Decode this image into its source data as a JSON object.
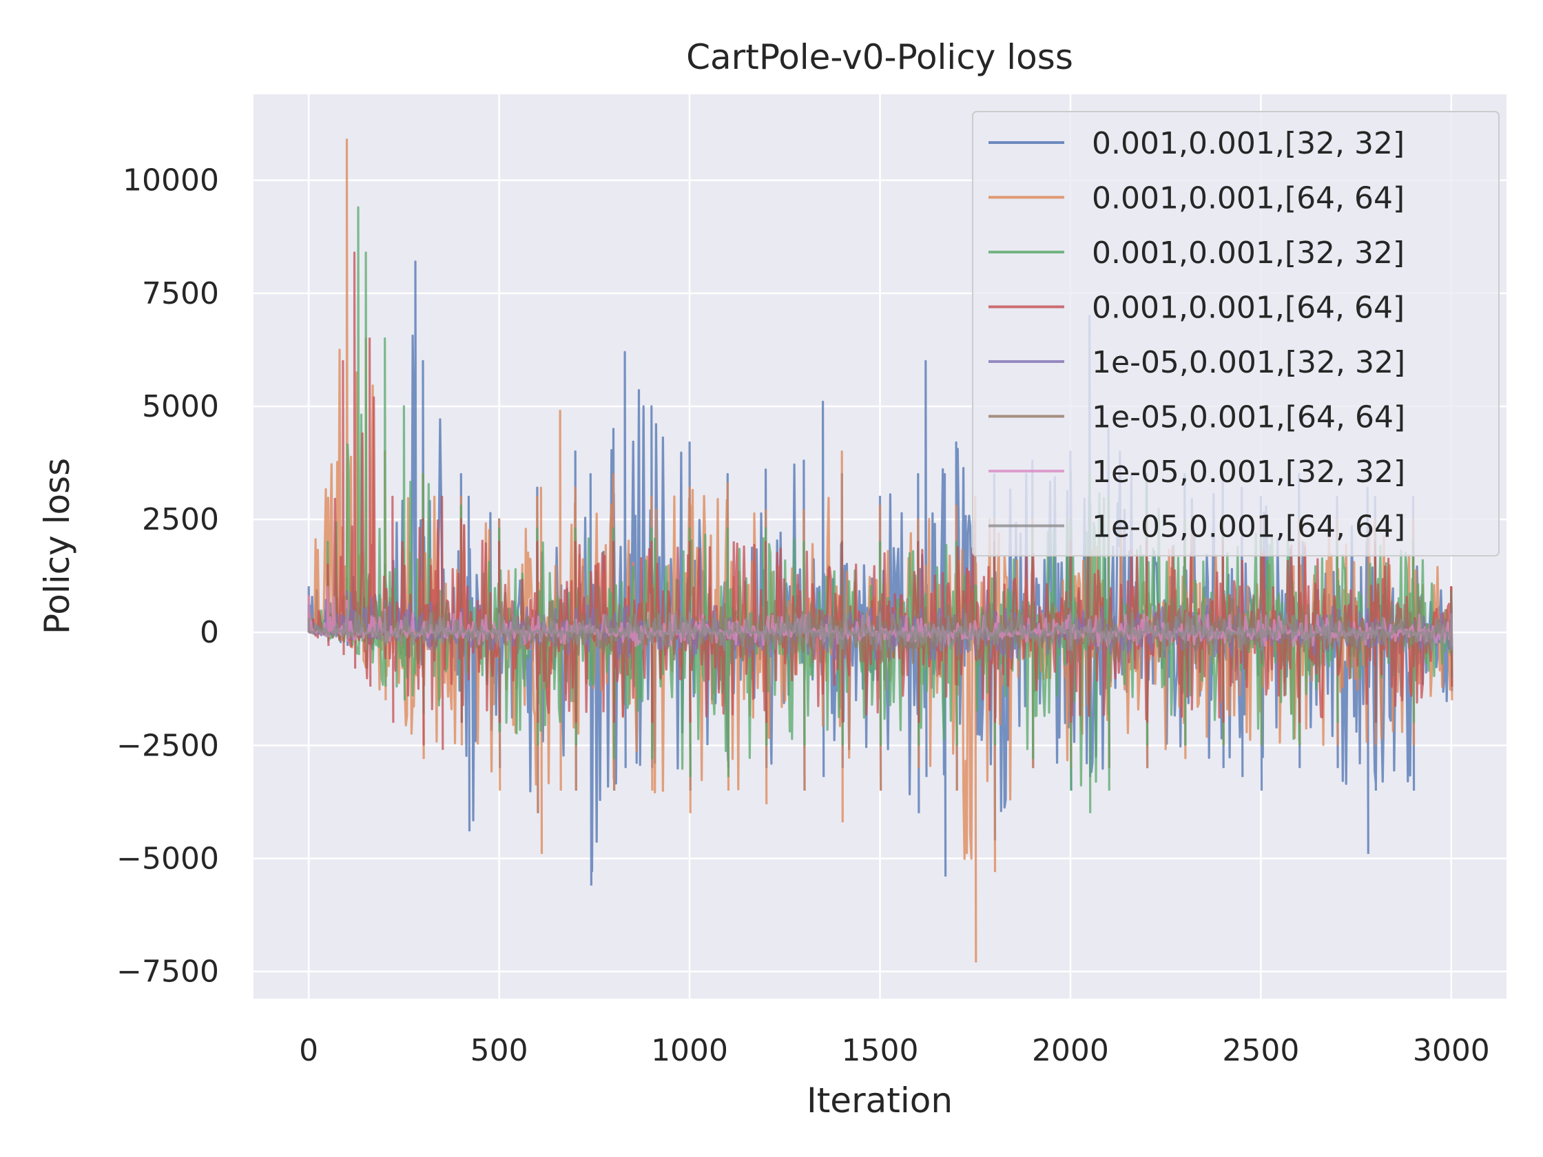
{
  "chart_data": {
    "type": "line",
    "title": "CartPole-v0-Policy loss",
    "xlabel": "Iteration",
    "ylabel": "Policy loss",
    "xlim": [
      -145,
      3145
    ],
    "ylim": [
      -8100,
      11900
    ],
    "xticks": [
      0,
      500,
      1000,
      1500,
      2000,
      2500,
      3000
    ],
    "xtick_labels": [
      "0",
      "500",
      "1000",
      "1500",
      "2000",
      "2500",
      "3000"
    ],
    "yticks": [
      -7500,
      -5000,
      -2500,
      0,
      2500,
      5000,
      7500,
      10000
    ],
    "ytick_labels": [
      "−7500",
      "−5000",
      "−2500",
      "0",
      "2500",
      "5000",
      "7500",
      "10000"
    ],
    "grid": true,
    "legend_position": "top-right",
    "series": [
      {
        "name": "0.001,0.001,[32, 32]",
        "color": "#4c72b0",
        "x": [
          0,
          100,
          200,
          280,
          300,
          400,
          420,
          500,
          600,
          700,
          740,
          800,
          830,
          900,
          1000,
          1100,
          1200,
          1300,
          1350,
          1400,
          1500,
          1600,
          1620,
          1670,
          1700,
          1800,
          1900,
          2000,
          2050,
          2100,
          2200,
          2300,
          2400,
          2450,
          2500,
          2600,
          2700,
          2780,
          2800,
          2900,
          3000
        ],
        "lower": [
          0,
          -300,
          -500,
          -600,
          -800,
          -1500,
          -4400,
          -3000,
          -4000,
          -3500,
          -5600,
          -3500,
          -3000,
          -3000,
          -3500,
          -3000,
          -3000,
          -3500,
          -3200,
          -3000,
          -3500,
          -4000,
          -3200,
          -5400,
          -3500,
          -4600,
          -3000,
          -3500,
          -3200,
          -3000,
          -3000,
          -2500,
          -3000,
          -3200,
          -3500,
          -3000,
          -3000,
          -4900,
          -3500,
          -3500,
          -1300
        ],
        "upper": [
          1000,
          1200,
          1500,
          8200,
          6000,
          3500,
          3000,
          2500,
          3200,
          4000,
          3500,
          4500,
          6200,
          5000,
          4200,
          3500,
          3600,
          3800,
          5100,
          3500,
          3000,
          3500,
          6000,
          3500,
          4200,
          3500,
          3800,
          4000,
          7000,
          4500,
          3500,
          3500,
          3500,
          3200,
          3000,
          3500,
          3000,
          3200,
          3000,
          3000,
          1000
        ]
      },
      {
        "name": "0.001,0.001,[64, 64]",
        "color": "#dd8452",
        "x": [
          0,
          100,
          150,
          200,
          300,
          400,
          500,
          600,
          610,
          660,
          700,
          800,
          900,
          1000,
          1100,
          1200,
          1300,
          1400,
          1500,
          1600,
          1700,
          1750,
          1800,
          1900,
          2000,
          2100,
          2200,
          2300,
          2400,
          2500,
          2600,
          2700,
          2800,
          2900,
          3000
        ],
        "lower": [
          0,
          -200,
          -800,
          -1500,
          -2800,
          -2500,
          -3500,
          -4000,
          -4900,
          -3500,
          -3500,
          -3500,
          -3500,
          -4000,
          -3500,
          -3800,
          -3500,
          -4200,
          -3500,
          -3000,
          -3500,
          -7300,
          -5300,
          -3000,
          -3000,
          -3000,
          -3000,
          -2800,
          -2500,
          -2500,
          -2500,
          -2500,
          -2500,
          -2500,
          -1500
        ],
        "upper": [
          800,
          10900,
          6500,
          4000,
          3500,
          3000,
          2500,
          3000,
          3200,
          4900,
          3200,
          3500,
          3000,
          3200,
          3300,
          2700,
          2700,
          4000,
          2800,
          2500,
          2800,
          3000,
          2500,
          2500,
          2500,
          2500,
          2500,
          2500,
          2500,
          2500,
          2500,
          2500,
          2500,
          2500,
          1000
        ]
      },
      {
        "name": "0.001,0.001,[32, 32]",
        "color": "#55a868",
        "x": [
          0,
          50,
          130,
          150,
          200,
          250,
          300,
          400,
          500,
          600,
          700,
          800,
          900,
          1000,
          1100,
          1200,
          1300,
          1400,
          1500,
          1600,
          1700,
          1800,
          1900,
          2000,
          2050,
          2100,
          2200,
          2300,
          2400,
          2500,
          2600,
          2700,
          2800,
          2900,
          3000
        ],
        "lower": [
          0,
          -200,
          -500,
          -800,
          -1200,
          -1500,
          -1800,
          -2000,
          -2200,
          -2500,
          -2500,
          -2800,
          -2800,
          -3200,
          -3200,
          -2500,
          -2500,
          -2500,
          -2500,
          -2500,
          -2500,
          -2500,
          -2800,
          -3500,
          -4000,
          -3500,
          -2500,
          -2500,
          -2500,
          -2500,
          -2500,
          -2000,
          -2000,
          -2000,
          -1000
        ],
        "upper": [
          600,
          2000,
          9400,
          8400,
          6500,
          5000,
          3500,
          2800,
          2300,
          2300,
          2300,
          2300,
          2300,
          2300,
          2300,
          2300,
          2000,
          2000,
          2000,
          2000,
          2000,
          2000,
          2300,
          2500,
          3500,
          3000,
          3500,
          2500,
          2500,
          2200,
          2000,
          2000,
          2000,
          2000,
          800
        ]
      },
      {
        "name": "0.001,0.001,[64, 64]",
        "color": "#c44e52",
        "x": [
          0,
          50,
          90,
          120,
          160,
          220,
          300,
          350,
          400,
          500,
          600,
          700,
          800,
          900,
          1000,
          1200,
          1400,
          1600,
          1800,
          2000,
          2200,
          2400,
          2600,
          2800,
          3000
        ],
        "lower": [
          0,
          -300,
          -500,
          -800,
          -1200,
          -2000,
          -2500,
          -2600,
          -2000,
          -2000,
          -2000,
          -2000,
          -2000,
          -2000,
          -2000,
          -2000,
          -2000,
          -2000,
          -2000,
          -2000,
          -2000,
          -2000,
          -2000,
          -2000,
          -1200
        ],
        "upper": [
          500,
          1500,
          6000,
          8400,
          6500,
          3000,
          2500,
          3000,
          2500,
          2000,
          2000,
          2000,
          2000,
          2000,
          2000,
          2000,
          2000,
          2000,
          2000,
          2000,
          2000,
          2000,
          2000,
          2000,
          1000
        ]
      },
      {
        "name": "1e-05,0.001,[32, 32]",
        "color": "#8172b3",
        "x": [
          0,
          100,
          200,
          500,
          1000,
          1500,
          2000,
          2500,
          3000
        ],
        "lower": [
          0,
          -200,
          -300,
          -500,
          -600,
          -600,
          -600,
          -600,
          -400
        ],
        "upper": [
          600,
          900,
          700,
          600,
          600,
          600,
          600,
          600,
          500
        ]
      },
      {
        "name": "1e-05,0.001,[64, 64]",
        "color": "#937860",
        "x": [
          0,
          100,
          200,
          500,
          1000,
          1500,
          2000,
          2500,
          3000
        ],
        "lower": [
          0,
          -200,
          -300,
          -600,
          -700,
          -700,
          -700,
          -700,
          -500
        ],
        "upper": [
          500,
          800,
          700,
          700,
          700,
          700,
          700,
          900,
          900
        ]
      },
      {
        "name": "1e-05,0.001,[32, 32]",
        "color": "#da8bc3",
        "x": [
          0,
          50,
          100,
          200,
          500,
          1000,
          1500,
          2000,
          2500,
          3000
        ],
        "lower": [
          0,
          -100,
          -200,
          -200,
          -300,
          -300,
          -300,
          -300,
          -300,
          -300
        ],
        "upper": [
          800,
          1000,
          700,
          500,
          400,
          400,
          400,
          400,
          400,
          400
        ]
      },
      {
        "name": "1e-05,0.001,[64, 64]",
        "color": "#8c8c8c",
        "x": [
          0,
          100,
          200,
          500,
          1000,
          1500,
          2000,
          2500,
          3000
        ],
        "lower": [
          0,
          -150,
          -250,
          -350,
          -400,
          -400,
          -400,
          -400,
          -400
        ],
        "upper": [
          300,
          500,
          450,
          400,
          450,
          450,
          450,
          450,
          400
        ]
      }
    ]
  }
}
